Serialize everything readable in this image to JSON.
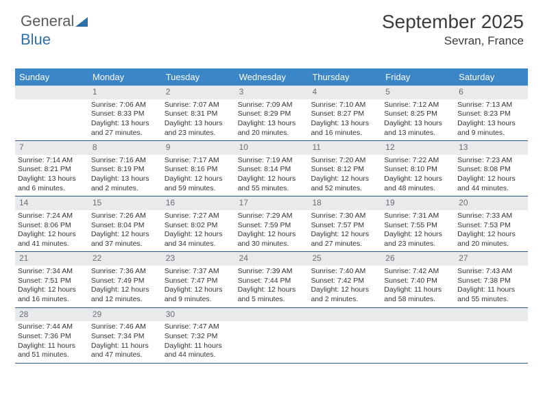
{
  "logo": {
    "part1": "General",
    "part2": "Blue"
  },
  "title": {
    "month": "September 2025",
    "location": "Sevran, France"
  },
  "colors": {
    "header_bg": "#3b86c6",
    "header_text": "#ffffff",
    "daybar_bg": "#e8eaec",
    "daybar_text": "#6a6f76",
    "rule": "#2c5a87",
    "body_text": "#333333",
    "title_text": "#3b3b3b",
    "logo_gray": "#5a5a5a",
    "logo_blue": "#2f6fa8"
  },
  "layout": {
    "fontsize_header": 13,
    "fontsize_body": 10.5,
    "fontsize_title": 28,
    "fontsize_location": 17,
    "fontsize_daynum": 12
  },
  "weekdays": [
    "Sunday",
    "Monday",
    "Tuesday",
    "Wednesday",
    "Thursday",
    "Friday",
    "Saturday"
  ],
  "weeks": [
    [
      {
        "day": "",
        "lines": []
      },
      {
        "day": "1",
        "lines": [
          "Sunrise: 7:06 AM",
          "Sunset: 8:33 PM",
          "Daylight: 13 hours and 27 minutes."
        ]
      },
      {
        "day": "2",
        "lines": [
          "Sunrise: 7:07 AM",
          "Sunset: 8:31 PM",
          "Daylight: 13 hours and 23 minutes."
        ]
      },
      {
        "day": "3",
        "lines": [
          "Sunrise: 7:09 AM",
          "Sunset: 8:29 PM",
          "Daylight: 13 hours and 20 minutes."
        ]
      },
      {
        "day": "4",
        "lines": [
          "Sunrise: 7:10 AM",
          "Sunset: 8:27 PM",
          "Daylight: 13 hours and 16 minutes."
        ]
      },
      {
        "day": "5",
        "lines": [
          "Sunrise: 7:12 AM",
          "Sunset: 8:25 PM",
          "Daylight: 13 hours and 13 minutes."
        ]
      },
      {
        "day": "6",
        "lines": [
          "Sunrise: 7:13 AM",
          "Sunset: 8:23 PM",
          "Daylight: 13 hours and 9 minutes."
        ]
      }
    ],
    [
      {
        "day": "7",
        "lines": [
          "Sunrise: 7:14 AM",
          "Sunset: 8:21 PM",
          "Daylight: 13 hours and 6 minutes."
        ]
      },
      {
        "day": "8",
        "lines": [
          "Sunrise: 7:16 AM",
          "Sunset: 8:19 PM",
          "Daylight: 13 hours and 2 minutes."
        ]
      },
      {
        "day": "9",
        "lines": [
          "Sunrise: 7:17 AM",
          "Sunset: 8:16 PM",
          "Daylight: 12 hours and 59 minutes."
        ]
      },
      {
        "day": "10",
        "lines": [
          "Sunrise: 7:19 AM",
          "Sunset: 8:14 PM",
          "Daylight: 12 hours and 55 minutes."
        ]
      },
      {
        "day": "11",
        "lines": [
          "Sunrise: 7:20 AM",
          "Sunset: 8:12 PM",
          "Daylight: 12 hours and 52 minutes."
        ]
      },
      {
        "day": "12",
        "lines": [
          "Sunrise: 7:22 AM",
          "Sunset: 8:10 PM",
          "Daylight: 12 hours and 48 minutes."
        ]
      },
      {
        "day": "13",
        "lines": [
          "Sunrise: 7:23 AM",
          "Sunset: 8:08 PM",
          "Daylight: 12 hours and 44 minutes."
        ]
      }
    ],
    [
      {
        "day": "14",
        "lines": [
          "Sunrise: 7:24 AM",
          "Sunset: 8:06 PM",
          "Daylight: 12 hours and 41 minutes."
        ]
      },
      {
        "day": "15",
        "lines": [
          "Sunrise: 7:26 AM",
          "Sunset: 8:04 PM",
          "Daylight: 12 hours and 37 minutes."
        ]
      },
      {
        "day": "16",
        "lines": [
          "Sunrise: 7:27 AM",
          "Sunset: 8:02 PM",
          "Daylight: 12 hours and 34 minutes."
        ]
      },
      {
        "day": "17",
        "lines": [
          "Sunrise: 7:29 AM",
          "Sunset: 7:59 PM",
          "Daylight: 12 hours and 30 minutes."
        ]
      },
      {
        "day": "18",
        "lines": [
          "Sunrise: 7:30 AM",
          "Sunset: 7:57 PM",
          "Daylight: 12 hours and 27 minutes."
        ]
      },
      {
        "day": "19",
        "lines": [
          "Sunrise: 7:31 AM",
          "Sunset: 7:55 PM",
          "Daylight: 12 hours and 23 minutes."
        ]
      },
      {
        "day": "20",
        "lines": [
          "Sunrise: 7:33 AM",
          "Sunset: 7:53 PM",
          "Daylight: 12 hours and 20 minutes."
        ]
      }
    ],
    [
      {
        "day": "21",
        "lines": [
          "Sunrise: 7:34 AM",
          "Sunset: 7:51 PM",
          "Daylight: 12 hours and 16 minutes."
        ]
      },
      {
        "day": "22",
        "lines": [
          "Sunrise: 7:36 AM",
          "Sunset: 7:49 PM",
          "Daylight: 12 hours and 12 minutes."
        ]
      },
      {
        "day": "23",
        "lines": [
          "Sunrise: 7:37 AM",
          "Sunset: 7:47 PM",
          "Daylight: 12 hours and 9 minutes."
        ]
      },
      {
        "day": "24",
        "lines": [
          "Sunrise: 7:39 AM",
          "Sunset: 7:44 PM",
          "Daylight: 12 hours and 5 minutes."
        ]
      },
      {
        "day": "25",
        "lines": [
          "Sunrise: 7:40 AM",
          "Sunset: 7:42 PM",
          "Daylight: 12 hours and 2 minutes."
        ]
      },
      {
        "day": "26",
        "lines": [
          "Sunrise: 7:42 AM",
          "Sunset: 7:40 PM",
          "Daylight: 11 hours and 58 minutes."
        ]
      },
      {
        "day": "27",
        "lines": [
          "Sunrise: 7:43 AM",
          "Sunset: 7:38 PM",
          "Daylight: 11 hours and 55 minutes."
        ]
      }
    ],
    [
      {
        "day": "28",
        "lines": [
          "Sunrise: 7:44 AM",
          "Sunset: 7:36 PM",
          "Daylight: 11 hours and 51 minutes."
        ]
      },
      {
        "day": "29",
        "lines": [
          "Sunrise: 7:46 AM",
          "Sunset: 7:34 PM",
          "Daylight: 11 hours and 47 minutes."
        ]
      },
      {
        "day": "30",
        "lines": [
          "Sunrise: 7:47 AM",
          "Sunset: 7:32 PM",
          "Daylight: 11 hours and 44 minutes."
        ]
      },
      {
        "day": "",
        "lines": []
      },
      {
        "day": "",
        "lines": []
      },
      {
        "day": "",
        "lines": []
      },
      {
        "day": "",
        "lines": []
      }
    ]
  ]
}
